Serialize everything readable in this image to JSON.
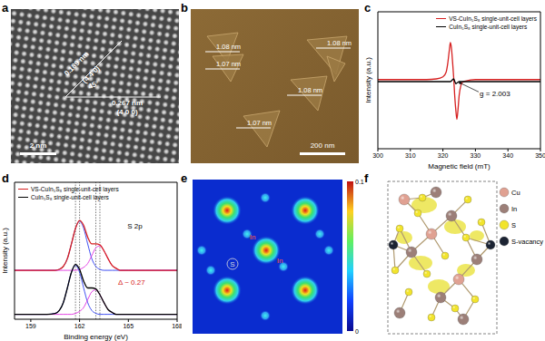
{
  "panels": [
    {
      "panel": "a",
      "texts": [
        "0.189 nm",
        "(4 4 0)",
        "45°",
        "0.267 nm",
        "(4 0 0)"
      ],
      "scale_bar": "2 nm"
    },
    {
      "panel": "b",
      "heights": [
        "1.08 nm",
        "1.07 nm",
        "1.08 nm",
        "1.08 nm",
        "1.07 nm"
      ],
      "scale_bar": "200 nm"
    },
    {
      "panel": "e",
      "atoms": [
        "In",
        "In",
        "S"
      ],
      "colorbar": {
        "range": [
          0,
          0.1
        ],
        "ticks": [
          0,
          0.1
        ]
      }
    },
    {
      "panel": "f",
      "legend": [
        {
          "name": "Cu",
          "color": "#e0a192"
        },
        {
          "name": "In",
          "color": "#9c7f78"
        },
        {
          "name": "S",
          "color": "#f2e42c"
        },
        {
          "name": "S-vacancy",
          "color": "#1c2433"
        }
      ]
    }
  ],
  "chart_data": [
    {
      "panel": "c",
      "type": "line",
      "x_label": "Magnetic field (mT)",
      "y_label": "Intensity (a.u.)",
      "xlim": [
        300,
        350
      ],
      "xticks": [
        300,
        310,
        320,
        330,
        340,
        350
      ],
      "ylim": [
        -1,
        1
      ],
      "tick_labels": "x",
      "legend": "upper right",
      "x": [
        300,
        310,
        315,
        318,
        320,
        321,
        321.5,
        322,
        322.3,
        322.6,
        323,
        323.3,
        323.6,
        324,
        324.3,
        324.6,
        325,
        325.5,
        326,
        327,
        330,
        340,
        350
      ],
      "series": [
        {
          "name": "VS-CuIn₅S₈ single-unit-cell layers",
          "color": "#d62020",
          "values": [
            0.01,
            0.01,
            0.01,
            0.02,
            0.05,
            0.12,
            0.25,
            0.45,
            0.55,
            0.48,
            0.25,
            0.05,
            -0.2,
            -0.45,
            -0.57,
            -0.45,
            -0.22,
            -0.08,
            -0.03,
            -0.01,
            0.01,
            0.01,
            0.01
          ]
        },
        {
          "name": "CuIn₅S₈ single-unit-cell layers",
          "color": "#000000",
          "values": [
            -0.02,
            -0.02,
            -0.02,
            -0.02,
            -0.02,
            -0.02,
            -0.02,
            -0.02,
            -0.02,
            -0.01,
            0.01,
            0.02,
            -0.01,
            -0.05,
            -0.04,
            -0.03,
            -0.02,
            -0.02,
            -0.02,
            -0.02,
            -0.02,
            -0.02,
            -0.02
          ]
        }
      ],
      "annotations": [
        {
          "text": "g = 2.003",
          "x": 336,
          "y": -0.2,
          "arrow": [
            [
              331,
              -0.17
            ],
            [
              325.3,
              -0.04
            ]
          ]
        }
      ]
    },
    {
      "panel": "d",
      "type": "line",
      "x_label": "Binding energy (eV)",
      "y_label": "Intensity (a.u.)",
      "xlim": [
        158,
        168
      ],
      "xticks": [
        159,
        162,
        165,
        168
      ],
      "ylim": [
        0,
        1.4
      ],
      "tick_labels": "x",
      "legend": "upper left",
      "x": [
        158,
        159,
        160,
        160.5,
        160.75,
        161,
        161.25,
        161.5,
        161.75,
        162,
        162.25,
        162.5,
        162.75,
        163,
        163.25,
        163.5,
        163.75,
        164,
        164.25,
        164.5,
        165,
        166,
        167,
        168
      ],
      "series": [
        {
          "color": "#2a3cf0",
          "values": [
            0.5,
            0.5,
            0.5,
            0.5,
            0.51,
            0.54,
            0.62,
            0.77,
            0.93,
            1,
            0.93,
            0.77,
            0.62,
            0.54,
            0.51,
            0.5,
            0.5,
            0.5,
            0.5,
            0.5,
            0.5,
            0.5,
            0.5,
            0.5
          ]
        },
        {
          "color": "#e030e0",
          "values": [
            0.5,
            0.5,
            0.5,
            0.5,
            0.5,
            0.5,
            0.5,
            0.5,
            0.5,
            0.51,
            0.53,
            0.57,
            0.65,
            0.73,
            0.75,
            0.7,
            0.62,
            0.55,
            0.52,
            0.5,
            0.5,
            0.5,
            0.5,
            0.5
          ]
        },
        {
          "color": "#2a3cf0",
          "values": [
            0.05,
            0.05,
            0.05,
            0.06,
            0.09,
            0.17,
            0.32,
            0.48,
            0.55,
            0.48,
            0.32,
            0.17,
            0.09,
            0.06,
            0.05,
            0.05,
            0.05,
            0.05,
            0.05,
            0.05,
            0.05,
            0.05,
            0.05,
            0.05
          ]
        },
        {
          "color": "#e030e0",
          "values": [
            0.05,
            0.05,
            0.05,
            0.05,
            0.05,
            0.05,
            0.05,
            0.05,
            0.06,
            0.08,
            0.12,
            0.2,
            0.28,
            0.3,
            0.25,
            0.17,
            0.1,
            0.07,
            0.05,
            0.05,
            0.05,
            0.05,
            0.05,
            0.05
          ]
        },
        {
          "name": "VS-CuIn₅S₈ single-unit-cell layers",
          "color": "#d62020",
          "values": [
            0.5,
            0.5,
            0.5,
            0.5,
            0.51,
            0.54,
            0.62,
            0.77,
            0.93,
            1.01,
            0.96,
            0.84,
            0.77,
            0.77,
            0.76,
            0.7,
            0.62,
            0.55,
            0.52,
            0.5,
            0.5,
            0.5,
            0.5,
            0.5
          ]
        },
        {
          "name": "CuIn₅S₈ single-unit-cell layers",
          "color": "#000000",
          "values": [
            0.05,
            0.05,
            0.05,
            0.06,
            0.09,
            0.17,
            0.32,
            0.48,
            0.56,
            0.51,
            0.39,
            0.32,
            0.32,
            0.31,
            0.25,
            0.17,
            0.1,
            0.07,
            0.05,
            0.05,
            0.05,
            0.05,
            0.05,
            0.05
          ]
        }
      ],
      "vlines": [
        161.75,
        162,
        163,
        163.25
      ],
      "annotations": [
        {
          "text": "S 2p",
          "x": 165.4,
          "y": 0.95
        },
        {
          "text": "Δ ~ 0.27",
          "x": 165.2,
          "y": 0.38,
          "color": "#d62020"
        }
      ]
    }
  ]
}
